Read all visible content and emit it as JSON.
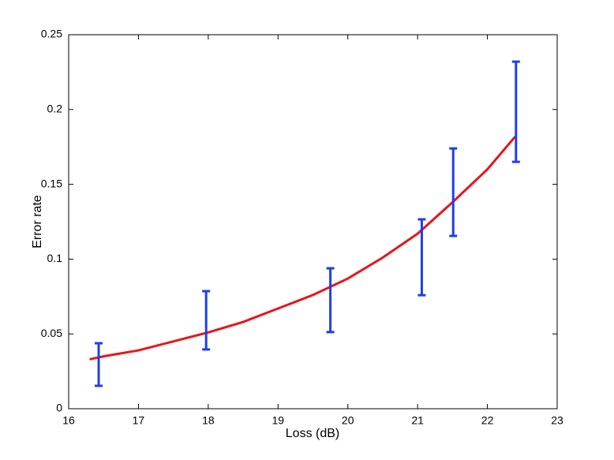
{
  "chart_data": {
    "type": "errorbar",
    "xlabel": "Loss (dB)",
    "ylabel": "Error rate",
    "xlim": [
      16,
      23
    ],
    "xticks": [
      16,
      17,
      18,
      19,
      20,
      21,
      22,
      23
    ],
    "ylim": [
      0,
      0.25
    ],
    "yticks": [
      0,
      0.05,
      0.1,
      0.15,
      0.2,
      0.25
    ],
    "errorbars": {
      "color": "#1f3fe6",
      "x": [
        16.43,
        17.97,
        19.75,
        21.06,
        21.51,
        22.41
      ],
      "low": [
        0.0153,
        0.0396,
        0.0512,
        0.0759,
        0.1155,
        0.165
      ],
      "high": [
        0.0438,
        0.0786,
        0.0939,
        0.1266,
        0.174,
        0.232
      ]
    },
    "fit": {
      "color": "#e8151b",
      "x": [
        16.3,
        16.5,
        17,
        17.5,
        18,
        18.5,
        19,
        19.5,
        20,
        20.5,
        21,
        21.5,
        22,
        22.4
      ],
      "values": [
        0.033,
        0.035,
        0.039,
        0.045,
        0.051,
        0.058,
        0.067,
        0.076,
        0.087,
        0.101,
        0.117,
        0.138,
        0.16,
        0.182
      ]
    }
  }
}
